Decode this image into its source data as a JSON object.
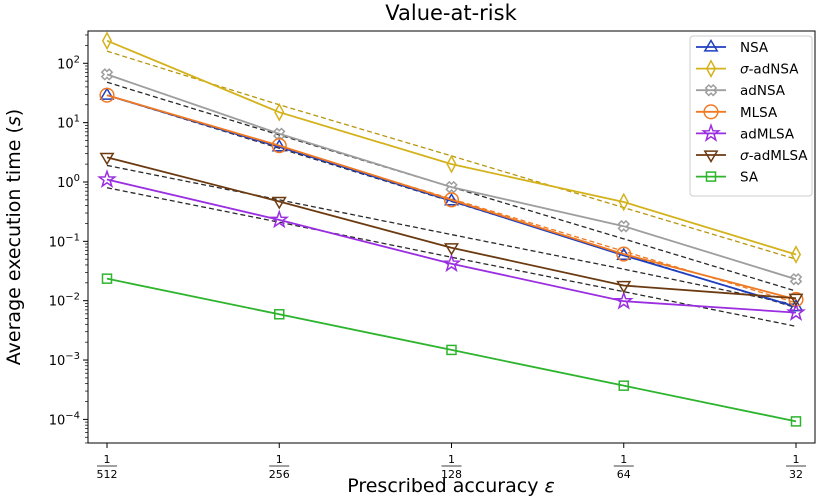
{
  "chart_data": {
    "type": "line",
    "title": "Value-at-risk",
    "xlabel_text": "Prescribed accuracy ",
    "xlabel_symbol": "ε",
    "ylabel_text": "Average execution time (",
    "ylabel_symbol": "s",
    "ylabel_close": ")",
    "x_scale": "log2",
    "y_scale": "log10",
    "x": [
      0.001953125,
      0.00390625,
      0.0078125,
      0.015625,
      0.03125
    ],
    "x_tick_labels": [
      {
        "num": "1",
        "den": "512"
      },
      {
        "num": "1",
        "den": "256"
      },
      {
        "num": "1",
        "den": "128"
      },
      {
        "num": "1",
        "den": "64"
      },
      {
        "num": "1",
        "den": "32"
      }
    ],
    "ylim": [
      4e-05,
      350
    ],
    "y_ticks": [
      {
        "base": "10",
        "exp": "−4",
        "value": 0.0001
      },
      {
        "base": "10",
        "exp": "−3",
        "value": 0.001
      },
      {
        "base": "10",
        "exp": "−2",
        "value": 0.01
      },
      {
        "base": "10",
        "exp": "−1",
        "value": 0.1
      },
      {
        "base": "10",
        "exp": "0",
        "value": 1
      },
      {
        "base": "10",
        "exp": "1",
        "value": 10
      },
      {
        "base": "10",
        "exp": "2",
        "value": 100
      }
    ],
    "legend_position": "top-right",
    "series": [
      {
        "name": "NSA",
        "prefix": "",
        "label": "NSA",
        "color": "#1f3fbf",
        "marker": "triangle-up",
        "values": [
          29,
          3.9,
          0.48,
          0.058,
          0.0079
        ],
        "fit": [
          29,
          3.7,
          0.47,
          0.06,
          0.0076
        ],
        "fit_color": "#2a2a2a"
      },
      {
        "name": "σ-adNSA",
        "prefix": "σ",
        "label": "-adNSA",
        "color": "#d4b21c",
        "marker": "thin-diamond",
        "values": [
          240,
          15,
          2.0,
          0.46,
          0.06
        ],
        "fit": [
          160,
          20,
          2.75,
          0.37,
          0.05
        ],
        "fit_color": "#b8960e"
      },
      {
        "name": "adNSA",
        "prefix": "",
        "label": "adNSA",
        "color": "#9e9e9e",
        "marker": "x",
        "values": [
          65,
          6.5,
          0.82,
          0.18,
          0.023
        ],
        "fit": [
          48,
          6.2,
          0.82,
          0.11,
          0.0145
        ],
        "fit_color": "#2a2a2a"
      },
      {
        "name": "MLSA",
        "prefix": "",
        "label": "MLSA",
        "color": "#f07a23",
        "marker": "circle",
        "values": [
          29,
          4.1,
          0.5,
          0.061,
          0.0105
        ],
        "fit": [
          29,
          3.85,
          0.52,
          0.068,
          0.0092
        ],
        "fit_color": "#f07a23"
      },
      {
        "name": "adMLSA",
        "prefix": "",
        "label": "adMLSA",
        "color": "#9a2ee0",
        "marker": "star",
        "values": [
          1.1,
          0.23,
          0.042,
          0.0098,
          0.0063
        ],
        "fit": [
          0.8,
          0.21,
          0.054,
          0.0142,
          0.0037
        ],
        "fit_color": "#2a2a2a"
      },
      {
        "name": "σ-adMLSA",
        "prefix": "σ",
        "label": "-adMLSA",
        "color": "#6b3a10",
        "marker": "triangle-down",
        "values": [
          2.6,
          0.47,
          0.078,
          0.018,
          0.011
        ],
        "fit": [
          1.9,
          0.5,
          0.13,
          0.034,
          0.0085
        ],
        "fit_color": "#2a2a2a"
      },
      {
        "name": "SA",
        "prefix": "",
        "label": "SA",
        "color": "#2db52d",
        "marker": "square",
        "values": [
          0.0235,
          0.0059,
          0.00148,
          0.00037,
          9.25e-05
        ],
        "fit": [
          0.0235,
          0.0059,
          0.00148,
          0.00037,
          9.25e-05
        ],
        "fit_color": "#2a2a2a"
      }
    ]
  }
}
